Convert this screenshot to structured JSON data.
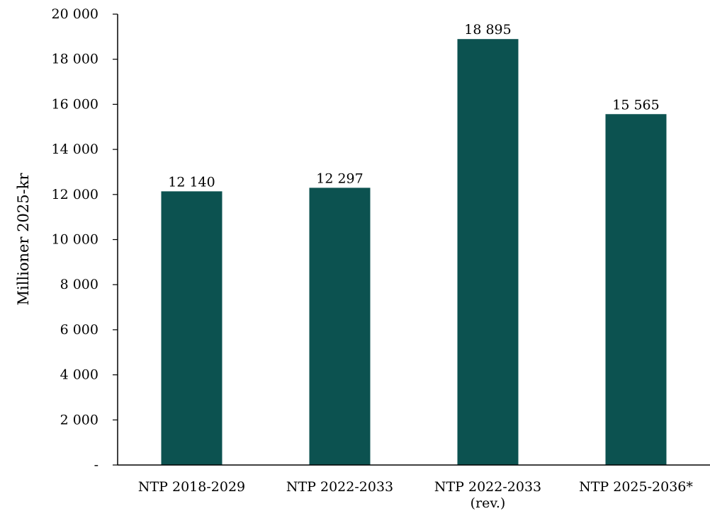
{
  "chart_data": {
    "type": "bar",
    "categories": [
      [
        "NTP 2018-2029"
      ],
      [
        "NTP 2022-2033"
      ],
      [
        "NTP 2022-2033",
        "(rev.)"
      ],
      [
        "NTP 2025-2036*"
      ]
    ],
    "values": [
      12140,
      12297,
      18895,
      15565
    ],
    "value_labels": [
      "12 140",
      "12 297",
      "18 895",
      "15 565"
    ],
    "ylabel": "Millioner 2025-kr",
    "ylim": [
      0,
      20000
    ],
    "y_ticks": [
      0,
      2000,
      4000,
      6000,
      8000,
      10000,
      12000,
      14000,
      16000,
      18000,
      20000
    ],
    "y_tick_labels": [
      "-",
      "2 000",
      "4 000",
      "6 000",
      "8 000",
      "10 000",
      "12 000",
      "14 000",
      "16 000",
      "18 000",
      "20 000"
    ],
    "bar_color": "#0c5250",
    "grid": false,
    "legend": "none"
  }
}
